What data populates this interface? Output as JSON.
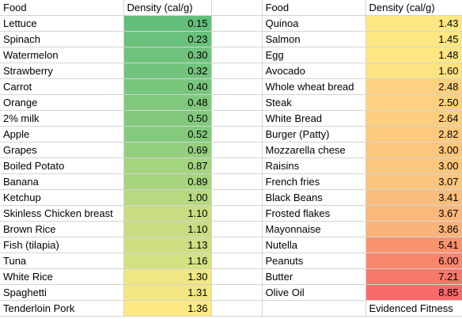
{
  "headers": {
    "left_food": "Food",
    "left_density": "Density (cal/g)",
    "right_food": "Food",
    "right_density": "Density (cal/g)"
  },
  "rows": [
    {
      "lf": "Lettuce",
      "lv": "0.15",
      "lc": "#63be7b",
      "rf": "Quinoa",
      "rv": "1.43",
      "rc": "#ffe884"
    },
    {
      "lf": "Spinach",
      "lv": "0.23",
      "lc": "#6ac17c",
      "rf": "Salmon",
      "rv": "1.45",
      "rc": "#ffe784"
    },
    {
      "lf": "Watermelon",
      "lv": "0.30",
      "lc": "#70c37c",
      "rf": "Egg",
      "rv": "1.48",
      "rc": "#ffe784"
    },
    {
      "lf": "Strawberry",
      "lv": "0.32",
      "lc": "#72c47c",
      "rf": "Avocado",
      "rv": "1.60",
      "rc": "#fee383"
    },
    {
      "lf": "Carrot",
      "lv": "0.40",
      "lc": "#79c67d",
      "rf": "Whole wheat bread",
      "rv": "2.48",
      "rc": "#fdd17f"
    },
    {
      "lf": "Orange",
      "lv": "0.48",
      "lc": "#80c87d",
      "rf": "Steak",
      "rv": "2.50",
      "rc": "#fdd17f"
    },
    {
      "lf": "2% milk",
      "lv": "0.50",
      "lc": "#82c97d",
      "rf": "White Bread",
      "rv": "2.64",
      "rc": "#fdce7e"
    },
    {
      "lf": "Apple",
      "lv": "0.52",
      "lc": "#84ca7d",
      "rf": "Burger (Patty)",
      "rv": "2.82",
      "rc": "#fdca7d"
    },
    {
      "lf": "Grapes",
      "lv": "0.69",
      "lc": "#94cf7e",
      "rf": "Mozzarella chese",
      "rv": "3.00",
      "rc": "#fcc67c"
    },
    {
      "lf": "Boiled Potato",
      "lv": "0.87",
      "lc": "#a5d47f",
      "rf": "Raisins",
      "rv": "3.00",
      "rc": "#fcc67c"
    },
    {
      "lf": "Banana",
      "lv": "0.89",
      "lc": "#a7d47f",
      "rf": "French fries",
      "rv": "3.07",
      "rc": "#fcc47c"
    },
    {
      "lf": "Ketchup",
      "lv": "1.00",
      "lc": "#b9d980",
      "rf": "Black Beans",
      "rv": "3.41",
      "rc": "#fbbd7b"
    },
    {
      "lf": "Skinless Chicken breast",
      "lv": "1.10",
      "lc": "#c8dd81",
      "rf": "Frosted flakes",
      "rv": "3.67",
      "rc": "#fbb87a"
    },
    {
      "lf": "Brown Rice",
      "lv": "1.10",
      "lc": "#c8dd81",
      "rf": "Mayonnaise",
      "rv": "3.86",
      "rc": "#fbb379"
    },
    {
      "lf": "Fish (tilapia)",
      "lv": "1.13",
      "lc": "#cedf81",
      "rf": "Nutella",
      "rv": "5.41",
      "rc": "#f9936f"
    },
    {
      "lf": "Tuna",
      "lv": "1.16",
      "lc": "#d4e182",
      "rf": "Peanuts",
      "rv": "6.00",
      "rc": "#f8876d"
    },
    {
      "lf": "White Rice",
      "lv": "1.30",
      "lc": "#f0e683",
      "rf": "Butter",
      "rv": "7.21",
      "rc": "#f8786b"
    },
    {
      "lf": "Spaghetti",
      "lv": "1.31",
      "lc": "#f2e783",
      "rf": "Olive Oil",
      "rv": "8.85",
      "rc": "#f8696b"
    },
    {
      "lf": "Tenderloin Pork",
      "lv": "1.36",
      "lc": "#fde984",
      "rf": "",
      "rv": "Evidenced Fitness",
      "rc": "#ffffff"
    }
  ]
}
